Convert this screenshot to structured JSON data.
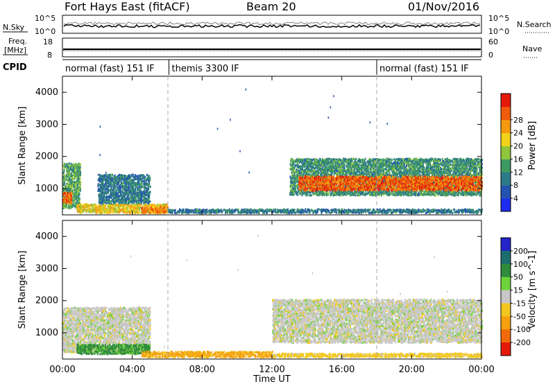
{
  "header": {
    "station": "Fort Hays East (fitACF)",
    "beam": "Beam 20",
    "date": "01/Nov/2016"
  },
  "noise_panel": {
    "left_label": "N.Sky",
    "right_label": "N.Search",
    "ticks": [
      "10^5",
      "10^0"
    ]
  },
  "freq_panel": {
    "left_label_1": "Freq.",
    "left_label_2": "[MHz]",
    "left_ticks": [
      "18",
      "8"
    ],
    "right_label": "Nave",
    "right_ticks": [
      "60",
      "0"
    ]
  },
  "cpid": {
    "label": "CPID",
    "segments": [
      {
        "name": "normal (fast) 151 IF",
        "start_h": 0,
        "end_h": 6.1
      },
      {
        "name": "themis 3300 IF",
        "start_h": 6.1,
        "end_h": 18.0
      },
      {
        "name": "normal (fast) 151 IF",
        "start_h": 18.0,
        "end_h": 24
      }
    ]
  },
  "chart_data": [
    {
      "type": "heatmap",
      "name": "Power",
      "xlabel": "Time UT",
      "ylabel": "Slant Range [km]",
      "xlim": [
        0,
        24
      ],
      "ylim": [
        180,
        4500
      ],
      "xticks": [
        "00:00",
        "04:00",
        "08:00",
        "12:00",
        "16:00",
        "20:00",
        "00:00"
      ],
      "yticks": [
        1000,
        2000,
        3000,
        4000
      ],
      "colorbar": {
        "label": "Power [dB]",
        "ticks": [
          "4",
          "8",
          "12",
          "16",
          "20",
          "24",
          "28"
        ],
        "colors": [
          "#1e2cf0",
          "#2352b0",
          "#2d7a8a",
          "#3d9a62",
          "#8fc63c",
          "#f2d21a",
          "#f59a10",
          "#f05a0c",
          "#e51a0a"
        ]
      },
      "scatter_regions": [
        {
          "t0": 0.0,
          "t1": 1.0,
          "r0": 350,
          "r1": 1750,
          "value": 14
        },
        {
          "t0": 0.0,
          "t1": 0.5,
          "r0": 500,
          "r1": 850,
          "value": 26
        },
        {
          "t0": 0.8,
          "t1": 6.0,
          "r0": 200,
          "r1": 480,
          "value": 20
        },
        {
          "t0": 2.0,
          "t1": 5.0,
          "r0": 500,
          "r1": 1400,
          "value": 10
        },
        {
          "t0": 4.5,
          "t1": 6.0,
          "r0": 200,
          "r1": 400,
          "value": 24
        },
        {
          "t0": 13.0,
          "t1": 24.0,
          "r0": 750,
          "r1": 1900,
          "value": 12
        },
        {
          "t0": 13.5,
          "t1": 24.0,
          "r0": 900,
          "r1": 1350,
          "value": 26
        },
        {
          "t0": 6.0,
          "t1": 24.0,
          "r0": 200,
          "r1": 320,
          "value": 10
        }
      ]
    },
    {
      "type": "heatmap",
      "name": "Velocity",
      "xlabel": "Time UT",
      "ylabel": "Slant Range [km]",
      "xlim": [
        0,
        24
      ],
      "ylim": [
        180,
        4500
      ],
      "xticks": [
        "00:00",
        "04:00",
        "08:00",
        "12:00",
        "16:00",
        "20:00",
        "00:00"
      ],
      "yticks": [
        1000,
        2000,
        3000,
        4000
      ],
      "colorbar": {
        "label": "Velocity [m s^-1]",
        "ticks": [
          "200",
          "100",
          "50",
          "15",
          "-15",
          "-50",
          "-100",
          "-200"
        ],
        "colors": [
          "#2424c8",
          "#1c6e6e",
          "#2e8c3c",
          "#6ed23a",
          "#c8c8c8",
          "#f2c820",
          "#f5a010",
          "#f06a0c",
          "#e51a0a"
        ]
      },
      "scatter_regions": [
        {
          "t0": 0.0,
          "t1": 5.0,
          "r0": 350,
          "r1": 1750,
          "value": 0
        },
        {
          "t0": 0.8,
          "t1": 5.0,
          "r0": 300,
          "r1": 600,
          "value": 60
        },
        {
          "t0": 4.5,
          "t1": 12.0,
          "r0": 200,
          "r1": 380,
          "value": -60
        },
        {
          "t0": 12.0,
          "t1": 24.0,
          "r0": 650,
          "r1": 2000,
          "value": 0
        },
        {
          "t0": 12.0,
          "t1": 24.0,
          "r0": 200,
          "r1": 320,
          "value": -30
        }
      ]
    }
  ],
  "noise_series": {
    "sky_level": 0.4,
    "search_level": 0.55
  }
}
